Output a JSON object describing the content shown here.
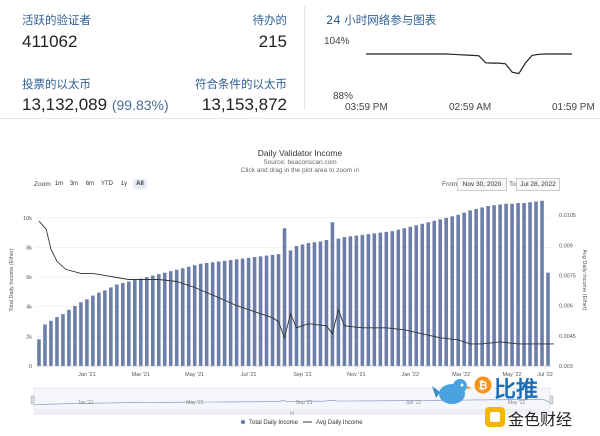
{
  "stats": {
    "active_validators": {
      "label": "活跃的验证者",
      "value": "411062"
    },
    "pending": {
      "label": "待办的",
      "value": "215"
    },
    "staked_eth": {
      "label": "投票的以太币",
      "value": "13,132,089",
      "pct": "(99.83%)"
    },
    "eligible_eth": {
      "label": "符合条件的以太币",
      "value": "13,153,872"
    }
  },
  "participation": {
    "title": "24 小时网络参与图表",
    "y_top": "104%",
    "y_bottom": "88%",
    "x_labels": [
      "03:59 PM",
      "02:59 AM",
      "01:59 PM"
    ]
  },
  "chart": {
    "title": "Daily Validator Income",
    "source": "Source: beaconscan.com",
    "hint": "Click and drag in the plot area to zoom in",
    "zoom_label": "Zoom",
    "zoom_buttons": [
      "1m",
      "3m",
      "6m",
      "YTD",
      "1y",
      "All"
    ],
    "from_label": "From",
    "from_date": "Nov 30, 2020",
    "to_label": "To",
    "to_date": "Jul 28, 2022",
    "left_axis_title": "Total Daily Income (Ether)",
    "right_axis_title": "Avg Daily Income (Ether)",
    "navigator_labels": [
      "Jan '21",
      "May '21",
      "Sep '21",
      "Jan '22",
      "May '22"
    ],
    "legend": {
      "bar": "Total Daily Income",
      "line": "Avg Daily Income"
    },
    "colors": {
      "bar": "#6b7fa8",
      "line": "#333333",
      "label": "#2c5f96"
    }
  },
  "chart_data": {
    "type": "bar",
    "title": "Daily Validator Income",
    "x_ticks": [
      "Jan '21",
      "Mar '21",
      "May '21",
      "Jul '21",
      "Sep '21",
      "Nov '21",
      "Jan '22",
      "Mar '22",
      "May '22",
      "Jul '22"
    ],
    "y_left_ticks": [
      "0",
      "2k",
      "4k",
      "6k",
      "8k",
      "10k"
    ],
    "y_right_ticks": [
      "0.003",
      "0.0045",
      "0.006",
      "0.0075",
      "0.009",
      "0.0105"
    ],
    "ylim_left": [
      0,
      11000
    ],
    "ylim_right": [
      0.003,
      0.0111
    ],
    "x_range": [
      "2020-12-01",
      "2022-07-28"
    ],
    "series": [
      {
        "name": "Total Daily Income",
        "type": "bar",
        "axis": "left",
        "values": [
          1800,
          2800,
          3050,
          3300,
          3500,
          3800,
          4050,
          4300,
          4500,
          4750,
          4950,
          5100,
          5300,
          5500,
          5600,
          5700,
          5800,
          5900,
          6000,
          6100,
          6200,
          6300,
          6400,
          6500,
          6600,
          6700,
          6800,
          6900,
          6950,
          7000,
          7050,
          7100,
          7150,
          7200,
          7250,
          7300,
          7350,
          7400,
          7450,
          7500,
          7550,
          9300,
          7800,
          8100,
          8200,
          8300,
          8350,
          8400,
          8500,
          9700,
          8600,
          8700,
          8750,
          8800,
          8850,
          8900,
          8950,
          9000,
          9050,
          9100,
          9200,
          9300,
          9400,
          9500,
          9600,
          9700,
          9800,
          9900,
          10000,
          10100,
          10200,
          10350,
          10500,
          10600,
          10700,
          10800,
          10850,
          10900,
          10950,
          10950,
          11000,
          11000,
          11050,
          11100,
          11150,
          6300
        ]
      },
      {
        "name": "Avg Daily Income",
        "type": "line",
        "axis": "right",
        "points": [
          [
            0,
            0.0102
          ],
          [
            1.2,
            0.0098
          ],
          [
            2,
            0.0088
          ],
          [
            3,
            0.0082
          ],
          [
            4.5,
            0.0078
          ],
          [
            7,
            0.0076
          ],
          [
            9,
            0.0076
          ],
          [
            11,
            0.0075
          ],
          [
            13,
            0.0074
          ],
          [
            15,
            0.0073
          ],
          [
            17,
            0.0073
          ],
          [
            20,
            0.0073
          ],
          [
            23,
            0.0072
          ],
          [
            26,
            0.0069
          ],
          [
            30,
            0.0064
          ],
          [
            33,
            0.006
          ],
          [
            36,
            0.0057
          ],
          [
            39,
            0.0054
          ],
          [
            40,
            0.0052
          ],
          [
            41,
            0.0044
          ],
          [
            42,
            0.0056
          ],
          [
            43,
            0.0049
          ],
          [
            45,
            0.0051
          ],
          [
            48,
            0.005
          ],
          [
            49,
            0.0046
          ],
          [
            50,
            0.0058
          ],
          [
            51,
            0.005
          ],
          [
            54,
            0.0049
          ],
          [
            58,
            0.0049
          ],
          [
            61,
            0.0048
          ],
          [
            64,
            0.0046
          ],
          [
            67,
            0.0044
          ],
          [
            70,
            0.0043
          ],
          [
            72,
            0.0041
          ],
          [
            74,
            0.0041
          ],
          [
            77,
            0.0042
          ],
          [
            80,
            0.0041
          ],
          [
            83,
            0.0041
          ],
          [
            86,
            0.0041
          ]
        ]
      }
    ]
  },
  "participation_data": {
    "type": "line",
    "ylim": [
      88,
      104
    ],
    "values": [
      100,
      100,
      100,
      100,
      100,
      100,
      100,
      100,
      100,
      100,
      100,
      100,
      100,
      99.9,
      99.8,
      99.7,
      99.6,
      99.5,
      97.5,
      97.4,
      97.4,
      97.2,
      94.8,
      94.4,
      97.5,
      99.6,
      99.9,
      100,
      100,
      100,
      100,
      100
    ]
  },
  "watermark": {
    "cn": "比推",
    "cn2": "金色财经"
  }
}
